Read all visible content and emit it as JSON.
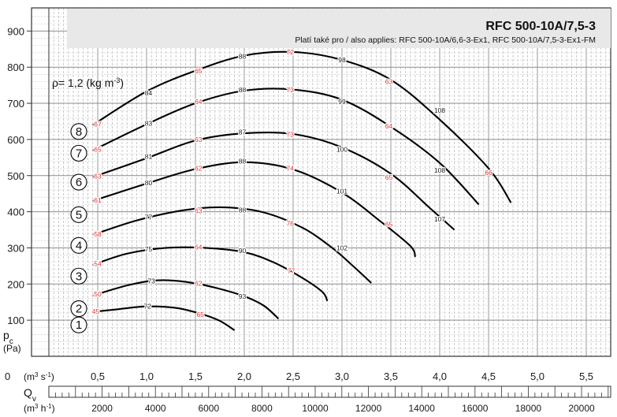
{
  "chart_data": {
    "type": "line",
    "title": "RFC 500-10A/7,5-3",
    "subtitle": "Platí také pro / also applies: RFC 500-10A/6,6-3-Ex1, RFC 500-10A/7,5-3-Ex1-FM",
    "density_label": "ρ= 1,2 (kg m",
    "density_sup": "-3",
    "density_close": ")",
    "ylabel": "p",
    "ylabel_sub": "c",
    "yunit": "(Pa)",
    "xlabel": "Q",
    "xlabel_sub": "v",
    "xunit_1": "(m",
    "xunit_1_sup": "3",
    "xunit_1_mid": " s",
    "xunit_1_sup2": "-1",
    "xunit_1_close": ")",
    "xunit_2": "(m",
    "xunit_2_sup": "3",
    "xunit_2_mid": " h",
    "xunit_2_sup2": "-1",
    "xunit_2_close": ")",
    "x_zero_label": "0",
    "xlim": [
      0,
      5.75
    ],
    "ylim": [
      0,
      960
    ],
    "y_ticks": [
      100,
      200,
      300,
      400,
      500,
      600,
      700,
      800,
      900
    ],
    "x_ticks": [
      {
        "value": 0.5,
        "label": "0,5"
      },
      {
        "value": 1.0,
        "label": "1,0"
      },
      {
        "value": 1.5,
        "label": "1,5"
      },
      {
        "value": 2.0,
        "label": "2,0"
      },
      {
        "value": 2.5,
        "label": "2,5"
      },
      {
        "value": 3.0,
        "label": "3,0"
      },
      {
        "value": 3.5,
        "label": "3,5"
      },
      {
        "value": 4.0,
        "label": "4,0"
      },
      {
        "value": 4.5,
        "label": "4,5"
      },
      {
        "value": 5.0,
        "label": "5,0"
      },
      {
        "value": 5.5,
        "label": "5,5"
      }
    ],
    "x2_ticks": [
      {
        "value": 2000,
        "label": "2000"
      },
      {
        "value": 4000,
        "label": "4000"
      },
      {
        "value": 6000,
        "label": "6000"
      },
      {
        "value": 8000,
        "label": "8000"
      },
      {
        "value": 10000,
        "label": "10000"
      },
      {
        "value": 12000,
        "label": "12000"
      },
      {
        "value": 14000,
        "label": "14000"
      },
      {
        "value": 16000,
        "label": "16000"
      },
      {
        "value": 18000,
        "label": "18000"
      },
      {
        "value": 20000,
        "label": "20000"
      }
    ],
    "grid": true,
    "series": [
      {
        "name": "1",
        "points": [
          [
            0.45,
            123
          ],
          [
            0.7,
            130
          ],
          [
            1.0,
            138
          ],
          [
            1.3,
            134
          ],
          [
            1.55,
            118
          ],
          [
            1.75,
            98
          ],
          [
            1.9,
            72
          ]
        ],
        "labels": [
          {
            "t": "45",
            "c": "red",
            "x": 0.48,
            "y": 124
          },
          {
            "t": "72",
            "c": "black",
            "x": 1.01,
            "y": 138
          },
          {
            "t": "65",
            "c": "red",
            "x": 1.55,
            "y": 116
          }
        ]
      },
      {
        "name": "2",
        "points": [
          [
            0.45,
            168
          ],
          [
            0.8,
            196
          ],
          [
            1.1,
            210
          ],
          [
            1.4,
            206
          ],
          [
            1.7,
            190
          ],
          [
            2.0,
            166
          ],
          [
            2.2,
            140
          ],
          [
            2.35,
            104
          ]
        ],
        "labels": [
          {
            "t": "50",
            "c": "red",
            "x": 0.5,
            "y": 172
          },
          {
            "t": "73",
            "c": "black",
            "x": 1.05,
            "y": 208
          },
          {
            "t": "62",
            "c": "red",
            "x": 1.53,
            "y": 202
          },
          {
            "t": "93",
            "c": "black",
            "x": 1.98,
            "y": 166
          }
        ]
      },
      {
        "name": "3",
        "points": [
          [
            0.45,
            253
          ],
          [
            0.8,
            284
          ],
          [
            1.2,
            300
          ],
          [
            1.6,
            300
          ],
          [
            2.0,
            288
          ],
          [
            2.3,
            260
          ],
          [
            2.6,
            216
          ],
          [
            2.8,
            178
          ],
          [
            2.85,
            153
          ]
        ],
        "labels": [
          {
            "t": "54",
            "c": "red",
            "x": 0.5,
            "y": 256
          },
          {
            "t": "75",
            "c": "black",
            "x": 1.02,
            "y": 297
          },
          {
            "t": "64",
            "c": "red",
            "x": 1.53,
            "y": 302
          },
          {
            "t": "90",
            "c": "black",
            "x": 1.98,
            "y": 292
          },
          {
            "t": "77",
            "c": "red",
            "x": 2.48,
            "y": 237
          }
        ]
      },
      {
        "name": "4",
        "points": [
          [
            0.45,
            336
          ],
          [
            0.9,
            376
          ],
          [
            1.4,
            405
          ],
          [
            1.8,
            412
          ],
          [
            2.2,
            398
          ],
          [
            2.6,
            355
          ],
          [
            2.9,
            300
          ],
          [
            3.1,
            253
          ],
          [
            3.3,
            203
          ]
        ],
        "labels": [
          {
            "t": "58",
            "c": "red",
            "x": 0.5,
            "y": 338
          },
          {
            "t": "77",
            "c": "black",
            "x": 1.02,
            "y": 385
          },
          {
            "t": "63",
            "c": "red",
            "x": 1.53,
            "y": 402
          },
          {
            "t": "88",
            "c": "black",
            "x": 1.98,
            "y": 405
          },
          {
            "t": "76",
            "c": "red",
            "x": 2.47,
            "y": 368
          },
          {
            "t": "102",
            "c": "black",
            "x": 3.0,
            "y": 300
          }
        ]
      },
      {
        "name": "5",
        "points": [
          [
            0.45,
            430
          ],
          [
            1.0,
            478
          ],
          [
            1.5,
            518
          ],
          [
            2.0,
            537
          ],
          [
            2.5,
            517
          ],
          [
            3.0,
            453
          ],
          [
            3.4,
            372
          ],
          [
            3.7,
            305
          ],
          [
            3.75,
            275
          ]
        ],
        "labels": [
          {
            "t": "61",
            "c": "red",
            "x": 0.5,
            "y": 432
          },
          {
            "t": "80",
            "c": "black",
            "x": 1.02,
            "y": 480
          },
          {
            "t": "62",
            "c": "red",
            "x": 1.53,
            "y": 520
          },
          {
            "t": "88",
            "c": "black",
            "x": 1.98,
            "y": 540
          },
          {
            "t": "74",
            "c": "red",
            "x": 2.47,
            "y": 520
          },
          {
            "t": "101",
            "c": "black",
            "x": 3.0,
            "y": 457
          },
          {
            "t": "65",
            "c": "red",
            "x": 3.48,
            "y": 365
          }
        ]
      },
      {
        "name": "6",
        "points": [
          [
            0.45,
            496
          ],
          [
            1.0,
            548
          ],
          [
            1.5,
            597
          ],
          [
            2.0,
            617
          ],
          [
            2.5,
            615
          ],
          [
            3.0,
            578
          ],
          [
            3.5,
            505
          ],
          [
            3.9,
            410
          ],
          [
            4.15,
            350
          ]
        ],
        "labels": [
          {
            "t": "63",
            "c": "red",
            "x": 0.5,
            "y": 498
          },
          {
            "t": "81",
            "c": "black",
            "x": 1.02,
            "y": 553
          },
          {
            "t": "63",
            "c": "red",
            "x": 1.53,
            "y": 600
          },
          {
            "t": "87",
            "c": "black",
            "x": 1.98,
            "y": 620
          },
          {
            "t": "73",
            "c": "red",
            "x": 2.47,
            "y": 614
          },
          {
            "t": "100",
            "c": "black",
            "x": 3.0,
            "y": 572
          },
          {
            "t": "65",
            "c": "red",
            "x": 3.48,
            "y": 495
          },
          {
            "t": "107",
            "c": "black",
            "x": 4.0,
            "y": 380
          }
        ]
      },
      {
        "name": "7",
        "points": [
          [
            0.45,
            570
          ],
          [
            1.0,
            642
          ],
          [
            1.5,
            700
          ],
          [
            2.0,
            735
          ],
          [
            2.5,
            738
          ],
          [
            3.0,
            710
          ],
          [
            3.5,
            635
          ],
          [
            4.0,
            535
          ],
          [
            4.4,
            420
          ]
        ],
        "labels": [
          {
            "t": "65",
            "c": "red",
            "x": 0.5,
            "y": 572
          },
          {
            "t": "83",
            "c": "black",
            "x": 1.02,
            "y": 645
          },
          {
            "t": "64",
            "c": "red",
            "x": 1.53,
            "y": 705
          },
          {
            "t": "88",
            "c": "black",
            "x": 1.98,
            "y": 737
          },
          {
            "t": "73",
            "c": "red",
            "x": 2.47,
            "y": 737
          },
          {
            "t": "99",
            "c": "black",
            "x": 3.0,
            "y": 705
          },
          {
            "t": "64",
            "c": "red",
            "x": 3.48,
            "y": 637
          },
          {
            "t": "108",
            "c": "black",
            "x": 4.0,
            "y": 515
          }
        ]
      },
      {
        "name": "8",
        "points": [
          [
            0.45,
            640
          ],
          [
            1.0,
            733
          ],
          [
            1.5,
            790
          ],
          [
            2.0,
            832
          ],
          [
            2.5,
            842
          ],
          [
            3.0,
            820
          ],
          [
            3.5,
            765
          ],
          [
            4.0,
            655
          ],
          [
            4.5,
            520
          ],
          [
            4.73,
            425
          ]
        ],
        "labels": [
          {
            "t": "67",
            "c": "red",
            "x": 0.5,
            "y": 642
          },
          {
            "t": "84",
            "c": "black",
            "x": 1.02,
            "y": 728
          },
          {
            "t": "65",
            "c": "red",
            "x": 1.53,
            "y": 790
          },
          {
            "t": "88",
            "c": "black",
            "x": 1.98,
            "y": 830
          },
          {
            "t": "72",
            "c": "red",
            "x": 2.47,
            "y": 842
          },
          {
            "t": "98",
            "c": "black",
            "x": 3.0,
            "y": 820
          },
          {
            "t": "63",
            "c": "red",
            "x": 3.48,
            "y": 760
          },
          {
            "t": "108",
            "c": "black",
            "x": 4.0,
            "y": 680
          },
          {
            "t": "66",
            "c": "red",
            "x": 4.5,
            "y": 508
          }
        ]
      }
    ],
    "speed_markers": [
      {
        "label": "1",
        "y": 100
      },
      {
        "label": "2",
        "y": 145
      },
      {
        "label": "3",
        "y": 235
      },
      {
        "label": "4",
        "y": 320
      },
      {
        "label": "5",
        "y": 405
      },
      {
        "label": "6",
        "y": 495
      },
      {
        "label": "7",
        "y": 575
      },
      {
        "label": "8",
        "y": 635
      }
    ]
  }
}
